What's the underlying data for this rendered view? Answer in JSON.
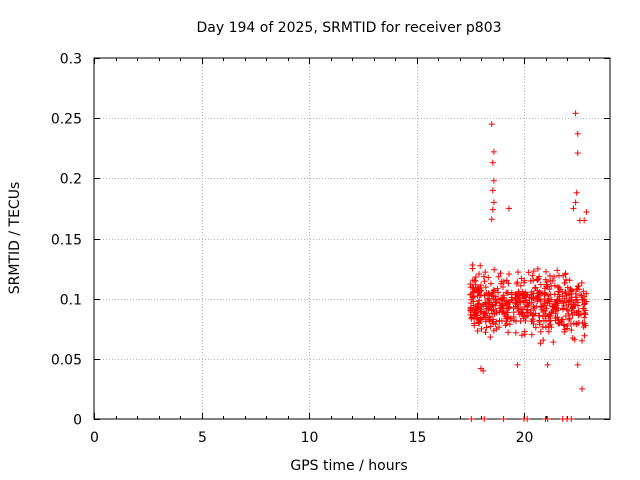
{
  "chart_data": {
    "type": "scatter",
    "title": "Day 194 of 2025, SRMTID for receiver p803",
    "xlabel": "GPS time / hours",
    "ylabel": "SRMTID / TECUs",
    "xlim": [
      0,
      24
    ],
    "ylim": [
      0,
      0.3
    ],
    "xticks": [
      0,
      5,
      10,
      15,
      20
    ],
    "yticks": [
      0,
      0.05,
      0.1,
      0.15,
      0.2,
      0.25,
      0.3
    ],
    "xtick_labels": [
      "0",
      "5",
      "10",
      "15",
      "20"
    ],
    "ytick_labels": [
      "0",
      "0.05",
      "0.1",
      "0.15",
      "0.2",
      "0.25",
      "0.3"
    ],
    "grid": true,
    "marker": "+",
    "color": "#ff0000",
    "generated_cloud": {
      "x_range": [
        17.5,
        22.9
      ],
      "count": 560,
      "y_center": 0.095,
      "y_spread": 0.032,
      "y_min": 0.025,
      "y_max": 0.18
    },
    "series": [
      {
        "name": "SRMTID",
        "points": [
          [
            18.5,
            0.245
          ],
          [
            18.6,
            0.222
          ],
          [
            18.55,
            0.213
          ],
          [
            18.6,
            0.198
          ],
          [
            18.55,
            0.19
          ],
          [
            18.6,
            0.18
          ],
          [
            18.55,
            0.174
          ],
          [
            18.5,
            0.166
          ],
          [
            19.3,
            0.175
          ],
          [
            22.4,
            0.254
          ],
          [
            22.5,
            0.237
          ],
          [
            22.5,
            0.221
          ],
          [
            22.45,
            0.188
          ],
          [
            22.4,
            0.18
          ],
          [
            22.3,
            0.175
          ],
          [
            22.6,
            0.165
          ],
          [
            22.9,
            0.172
          ],
          [
            22.8,
            0.165
          ],
          [
            17.6,
            0.128
          ],
          [
            17.6,
            0.125
          ],
          [
            18.0,
            0.042
          ],
          [
            18.1,
            0.04
          ],
          [
            19.7,
            0.045
          ],
          [
            22.7,
            0.025
          ],
          [
            22.5,
            0.045
          ],
          [
            22.7,
            0.065
          ],
          [
            21.1,
            0.045
          ],
          [
            17.55,
            0.0
          ],
          [
            18.15,
            0.0
          ],
          [
            19.05,
            0.0
          ],
          [
            20.0,
            0.0
          ],
          [
            20.15,
            0.0
          ],
          [
            21.0,
            0.0
          ],
          [
            21.1,
            0.0
          ],
          [
            21.8,
            0.0
          ],
          [
            22.0,
            0.0
          ],
          [
            22.2,
            0.0
          ]
        ]
      }
    ]
  }
}
